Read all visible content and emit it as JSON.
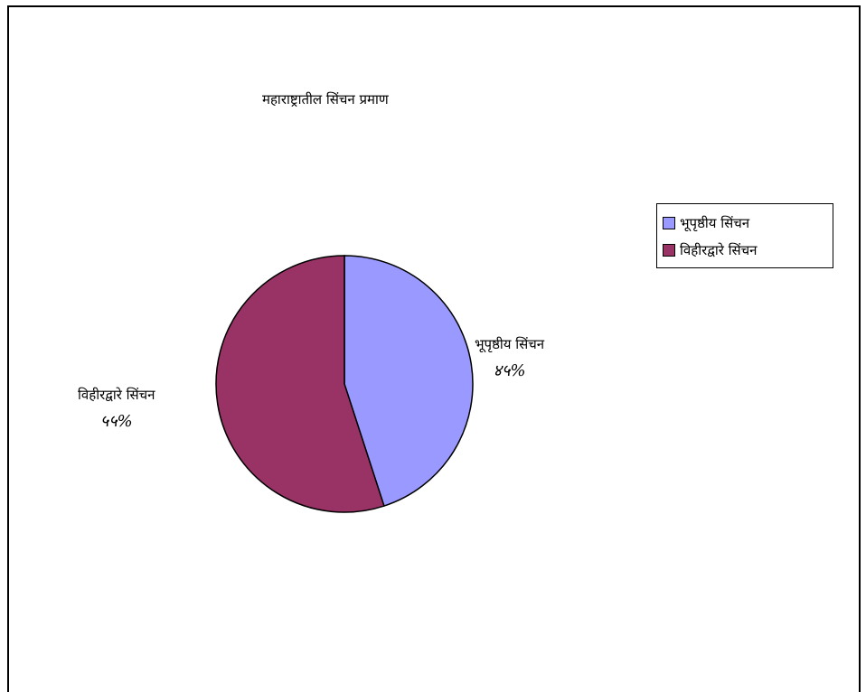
{
  "chart_data": {
    "type": "pie",
    "title": "महाराष्ट्रातील सिंचन प्रमाण",
    "categories": [
      "भूपृष्ठीय सिंचन",
      "विहीरद्वारे सिंचन"
    ],
    "values": [
      45,
      55
    ],
    "value_labels": [
      "४५%",
      "५५%"
    ],
    "colors": [
      "#9999ff",
      "#993366"
    ],
    "legend_position": "right"
  }
}
